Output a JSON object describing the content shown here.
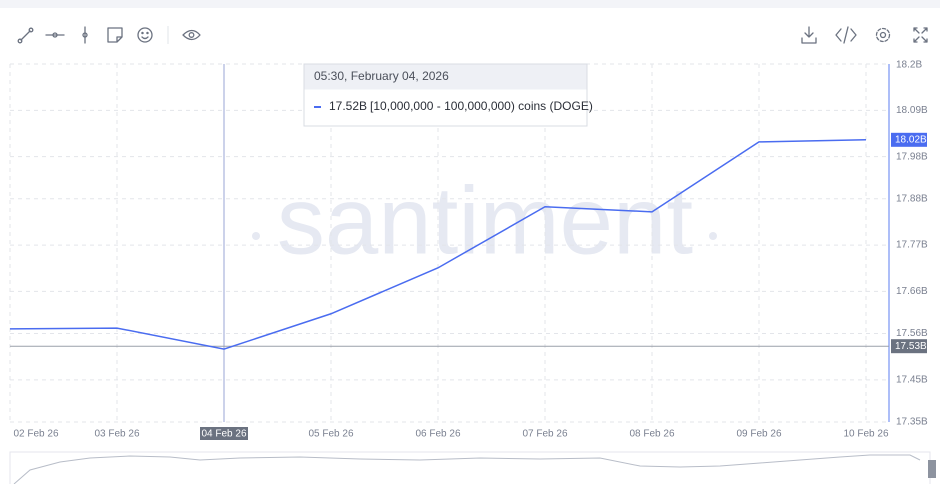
{
  "chart_data": {
    "type": "line",
    "watermark": "santiment",
    "categories": [
      "02 Feb 26",
      "03 Feb 26",
      "04 Feb 26",
      "05 Feb 26",
      "06 Feb 26",
      "07 Feb 26",
      "08 Feb 26",
      "09 Feb 26",
      "10 Feb 26"
    ],
    "series": [
      {
        "name": "[10,000,000 - 100,000,000) coins (DOGE)",
        "color": "#4a6cf0",
        "values": [
          17.571,
          17.573,
          17.523,
          17.607,
          17.716,
          17.861,
          17.849,
          18.015,
          18.02
        ]
      }
    ],
    "ylim": [
      17.35,
      18.2
    ],
    "yticks": [
      {
        "value": 17.35,
        "label": "17.35B"
      },
      {
        "value": 17.45,
        "label": "17.45B"
      },
      {
        "value": 17.56,
        "label": "17.56B"
      },
      {
        "value": 17.66,
        "label": "17.66B"
      },
      {
        "value": 17.77,
        "label": "17.77B"
      },
      {
        "value": 17.88,
        "label": "17.88B"
      },
      {
        "value": 17.98,
        "label": "17.98B"
      },
      {
        "value": 18.09,
        "label": "18.09B"
      },
      {
        "value": 18.2,
        "label": "18.2B"
      }
    ],
    "grid": true,
    "last_value": {
      "value": 18.02,
      "label": "18.02B"
    },
    "crosshair": {
      "category": 2,
      "value": 17.53,
      "label": "17.53B"
    },
    "tooltip": {
      "title": "05:30, February 04, 2026",
      "value_label": "17.52B",
      "text": "[10,000,000 - 100,000,000) coins (DOGE)"
    }
  }
}
